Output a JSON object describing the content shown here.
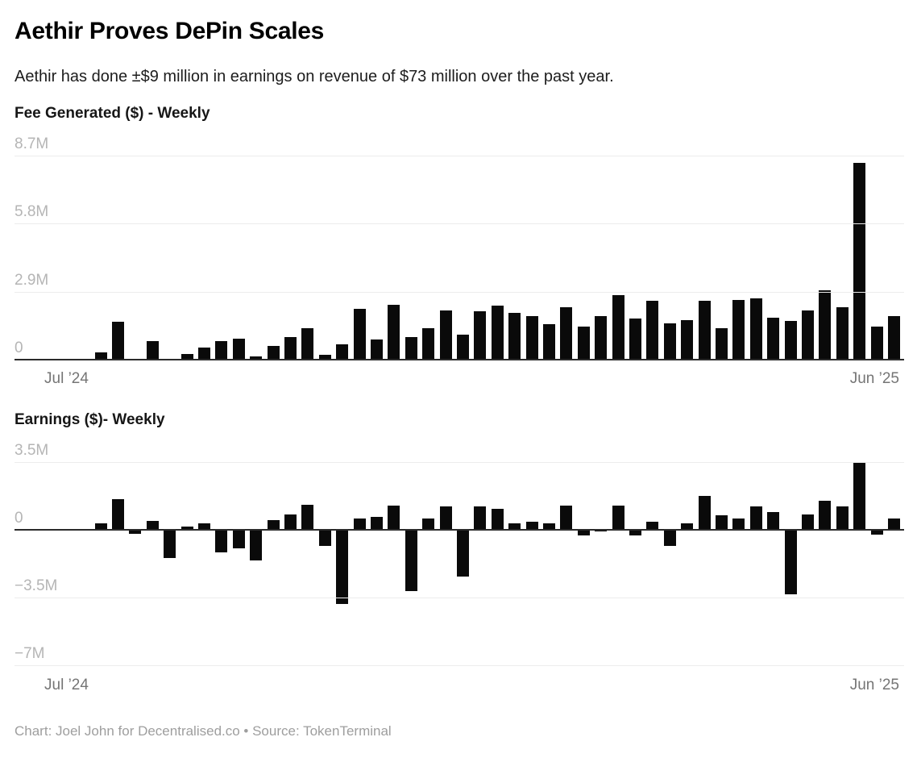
{
  "header": {
    "title": "Aethir Proves DePin Scales",
    "subtitle": "Aethir has done ±$9 million in earnings on revenue of $73 million over the past year."
  },
  "footer": {
    "credit": "Chart: Joel John for Decentralised.co • Source: TokenTerminal"
  },
  "colors": {
    "bar": "#0a0a0a",
    "gridline": "#ececec",
    "zero_axis": "#2b2b2b",
    "y_tick_label": "#b5b5b5",
    "x_tick_label": "#757575",
    "title": "#000000",
    "footer_text": "#9e9e9e"
  },
  "chart_data": [
    {
      "type": "bar",
      "title": "Fee Generated ($) - Weekly",
      "values_unit": "millions_usd",
      "x_start_label": "Jul ’24",
      "x_end_label": "Jun ’25",
      "x_axis_note": "weekly, Jul 2024 – Jun 2025",
      "grid": true,
      "legend": "none",
      "ylim": [
        0,
        8.7
      ],
      "yticks": [
        {
          "label": "8.7M",
          "value": 8.7
        },
        {
          "label": "5.8M",
          "value": 5.8
        },
        {
          "label": "2.9M",
          "value": 2.9
        },
        {
          "label": "0",
          "value": 0
        }
      ],
      "values": [
        0,
        0,
        0,
        0,
        0.3,
        1.6,
        0,
        0.8,
        0,
        0.25,
        0.5,
        0.8,
        0.9,
        0.15,
        0.6,
        0.95,
        1.35,
        0.2,
        0.65,
        2.15,
        0.85,
        2.35,
        0.95,
        1.35,
        2.1,
        1.05,
        2.05,
        2.3,
        2.0,
        1.85,
        1.5,
        2.25,
        1.4,
        1.85,
        2.75,
        1.75,
        2.5,
        1.55,
        1.7,
        2.5,
        1.35,
        2.55,
        2.6,
        1.8,
        1.65,
        2.1,
        2.95,
        2.25,
        8.4,
        1.4,
        1.85
      ]
    },
    {
      "type": "bar",
      "title": "Earnings ($)- Weekly",
      "values_unit": "millions_usd",
      "x_start_label": "Jul ’24",
      "x_end_label": "Jun ’25",
      "x_axis_note": "weekly, Jul 2024 – Jun 2025",
      "grid": true,
      "legend": "none",
      "ylim": [
        -7,
        3.5
      ],
      "yticks": [
        {
          "label": "3.5M",
          "value": 3.5
        },
        {
          "label": "0",
          "value": 0
        },
        {
          "label": "−3.5M",
          "value": -3.5
        },
        {
          "label": "−7M",
          "value": -7
        }
      ],
      "values": [
        0,
        0,
        0,
        0,
        0.35,
        1.6,
        -0.2,
        0.45,
        -1.45,
        0.15,
        0.35,
        -1.15,
        -0.95,
        -1.6,
        0.5,
        0.8,
        1.3,
        -0.85,
        -3.85,
        0.6,
        0.65,
        1.25,
        -3.15,
        0.6,
        1.2,
        -2.4,
        1.2,
        1.1,
        0.35,
        0.4,
        0.35,
        1.25,
        -0.3,
        -0.1,
        1.25,
        -0.3,
        0.4,
        -0.85,
        0.35,
        1.75,
        0.75,
        0.6,
        1.2,
        0.9,
        -3.35,
        0.8,
        1.5,
        1.2,
        3.45,
        -0.25,
        0.6
      ]
    }
  ]
}
